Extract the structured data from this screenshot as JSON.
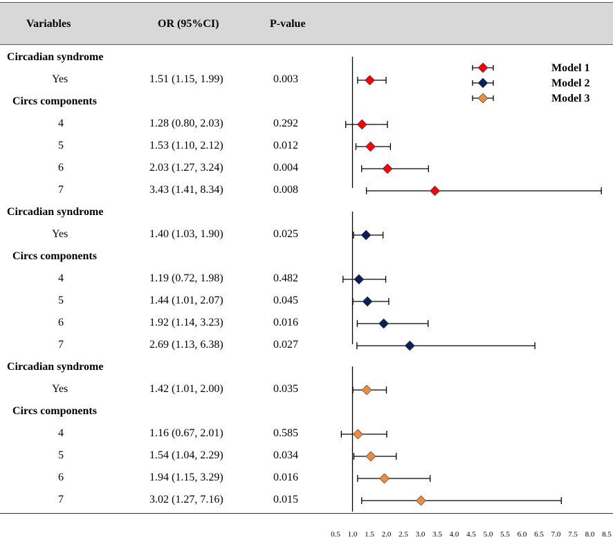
{
  "header": {
    "col_variables": "Variables",
    "col_or": "OR (95%CI)",
    "col_p": "P-value"
  },
  "rows": [
    {
      "label": "Circadian syndrome",
      "kind": "section"
    },
    {
      "label": "Yes",
      "or": "1.51 (1.15, 1.99)",
      "p": "0.003"
    },
    {
      "label": "Circs components",
      "kind": "section"
    },
    {
      "label": "4",
      "or": "1.28 (0.80, 2.03)",
      "p": "0.292"
    },
    {
      "label": "5",
      "or": "1.53 (1.10, 2.12)",
      "p": "0.012"
    },
    {
      "label": "6",
      "or": "2.03 (1.27, 3.24)",
      "p": "0.004"
    },
    {
      "label": "7",
      "or": "3.43 (1.41, 8.34)",
      "p": "0.008"
    },
    {
      "label": "Circadian syndrome",
      "kind": "section"
    },
    {
      "label": "Yes",
      "or": "1.40 (1.03, 1.90)",
      "p": "0.025"
    },
    {
      "label": "Circs components",
      "kind": "section"
    },
    {
      "label": "4",
      "or": "1.19 (0.72, 1.98)",
      "p": "0.482"
    },
    {
      "label": "5",
      "or": "1.44 (1.01, 2.07)",
      "p": "0.045"
    },
    {
      "label": "6",
      "or": "1.92 (1.14, 3.23)",
      "p": "0.016"
    },
    {
      "label": "7",
      "or": "2.69 (1.13, 6.38)",
      "p": "0.027"
    },
    {
      "label": "Circadian syndrome",
      "kind": "section"
    },
    {
      "label": "Yes",
      "or": "1.42 (1.01, 2.00)",
      "p": "0.035"
    },
    {
      "label": "Circs components",
      "kind": "section"
    },
    {
      "label": "4",
      "or": "1.16 (0.67, 2.01)",
      "p": "0.585"
    },
    {
      "label": "5",
      "or": "1.54 (1.04, 2.29)",
      "p": "0.034"
    },
    {
      "label": "6",
      "or": "1.94 (1.15, 3.29)",
      "p": "0.016"
    },
    {
      "label": "7",
      "or": "3.02 (1.27, 7.16)",
      "p": "0.015"
    }
  ],
  "chart_data": {
    "type": "forest",
    "title": "",
    "xlabel": "",
    "ylabel": "",
    "xlim": [
      0.5,
      8.5
    ],
    "reference_line": 1.0,
    "xticks": [
      "0.5",
      "1.0",
      "1.5",
      "2.0",
      "2.5",
      "3.0",
      "3.5",
      "4.0",
      "4.5",
      "5.0",
      "5.5",
      "6.0",
      "6.5",
      "7.0",
      "7.5",
      "8.0",
      "8.5"
    ],
    "legend": [
      {
        "name": "Model 1",
        "color": "#ff0000"
      },
      {
        "name": "Model 2",
        "color": "#0a1f5c"
      },
      {
        "name": "Model 3",
        "color": "#f08a3c"
      }
    ],
    "series": [
      {
        "name": "Model 1",
        "color": "#ff0000",
        "points": [
          {
            "label": "Yes",
            "or": 1.51,
            "lo": 1.15,
            "hi": 1.99
          },
          {
            "label": "4",
            "or": 1.28,
            "lo": 0.8,
            "hi": 2.03
          },
          {
            "label": "5",
            "or": 1.53,
            "lo": 1.1,
            "hi": 2.12
          },
          {
            "label": "6",
            "or": 2.03,
            "lo": 1.27,
            "hi": 3.24
          },
          {
            "label": "7",
            "or": 3.43,
            "lo": 1.41,
            "hi": 8.34
          }
        ]
      },
      {
        "name": "Model 2",
        "color": "#0a1f5c",
        "points": [
          {
            "label": "Yes",
            "or": 1.4,
            "lo": 1.03,
            "hi": 1.9
          },
          {
            "label": "4",
            "or": 1.19,
            "lo": 0.72,
            "hi": 1.98
          },
          {
            "label": "5",
            "or": 1.44,
            "lo": 1.01,
            "hi": 2.07
          },
          {
            "label": "6",
            "or": 1.92,
            "lo": 1.14,
            "hi": 3.23
          },
          {
            "label": "7",
            "or": 2.69,
            "lo": 1.13,
            "hi": 6.38
          }
        ]
      },
      {
        "name": "Model 3",
        "color": "#f08a3c",
        "points": [
          {
            "label": "Yes",
            "or": 1.42,
            "lo": 1.01,
            "hi": 2.0
          },
          {
            "label": "4",
            "or": 1.16,
            "lo": 0.67,
            "hi": 2.01
          },
          {
            "label": "5",
            "or": 1.54,
            "lo": 1.04,
            "hi": 2.29
          },
          {
            "label": "6",
            "or": 1.94,
            "lo": 1.15,
            "hi": 3.29
          },
          {
            "label": "7",
            "or": 3.02,
            "lo": 1.27,
            "hi": 7.16
          }
        ]
      }
    ]
  }
}
